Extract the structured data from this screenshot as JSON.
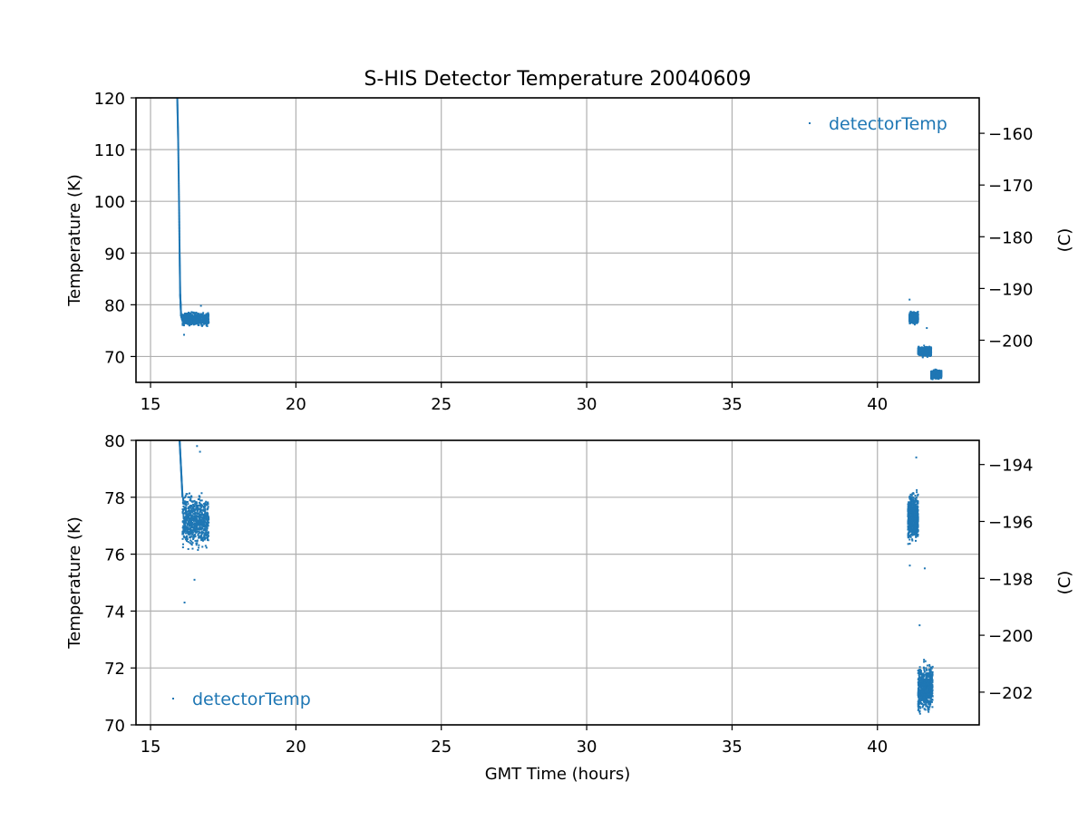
{
  "title": "S-HIS Detector Temperature 20040609",
  "colors": {
    "series": "#1f77b4",
    "grid": "#b0b0b0",
    "frame": "#000000"
  },
  "chart_data": [
    {
      "type": "scatter",
      "title": "S-HIS Detector Temperature 20040609",
      "xlabel": "",
      "ylabel": "Temperature (K)",
      "ylabel_right": "(C)",
      "xlim": [
        14.5,
        43.5
      ],
      "ylim": [
        65,
        120
      ],
      "right_ylim": [
        -208.15,
        -153.15
      ],
      "xticks": [
        "15",
        "20",
        "25",
        "30",
        "35",
        "40"
      ],
      "yticks": [
        "70",
        "80",
        "90",
        "100",
        "110",
        "120"
      ],
      "right_yticks": [
        "−200",
        "−190",
        "−180",
        "−170",
        "−160"
      ],
      "grid": true,
      "legend": "upper right",
      "series": [
        {
          "name": "detectorTemp",
          "segments": [
            {
              "x": [
                15.92,
                15.95,
                15.98,
                16.0,
                16.02,
                16.05,
                16.1
              ],
              "y": [
                120,
                112,
                100,
                90,
                82,
                78,
                77
              ]
            },
            {
              "x_range": [
                16.1,
                17.0
              ],
              "y_center": 77.2,
              "y_spread": 1.8,
              "outliers": [
                74.2,
                79.8
              ]
            },
            {
              "x_range": [
                41.1,
                41.4
              ],
              "y_center": 77.5,
              "y_spread": 1.5,
              "outliers": [
                81
              ]
            },
            {
              "x_range": [
                41.4,
                41.85
              ],
              "y_center": 71.0,
              "y_spread": 1.4,
              "outliers": [
                75.5
              ]
            },
            {
              "x_range": [
                41.85,
                42.2
              ],
              "y_center": 66.5,
              "y_spread": 1.2
            }
          ]
        }
      ]
    },
    {
      "type": "scatter",
      "xlabel": "GMT Time (hours)",
      "ylabel": "Temperature (K)",
      "ylabel_right": "(C)",
      "xlim": [
        14.5,
        43.5
      ],
      "ylim": [
        70,
        80
      ],
      "right_ylim": [
        -203.15,
        -193.15
      ],
      "xticks": [
        "15",
        "20",
        "25",
        "30",
        "35",
        "40"
      ],
      "yticks": [
        "70",
        "72",
        "74",
        "76",
        "78",
        "80"
      ],
      "right_yticks": [
        "−202",
        "−200",
        "−198",
        "−196",
        "−194"
      ],
      "grid": true,
      "legend": "lower left",
      "series": [
        {
          "name": "detectorTemp",
          "segments": [
            {
              "x": [
                16.0,
                16.05,
                16.1
              ],
              "y": [
                80,
                79,
                78
              ]
            },
            {
              "x_range": [
                16.1,
                17.0
              ],
              "y_center": 77.2,
              "y_spread": 1.4,
              "outliers": [
                74.3,
                75.1,
                79.8,
                79.6
              ]
            },
            {
              "x_range": [
                41.05,
                41.4
              ],
              "y_center": 77.3,
              "y_spread": 1.2,
              "outliers": [
                79.4,
                75.6
              ]
            },
            {
              "x_range": [
                41.4,
                41.9
              ],
              "y_center": 71.3,
              "y_spread": 1.2,
              "outliers": [
                75.5,
                73.5
              ]
            }
          ]
        }
      ]
    }
  ]
}
